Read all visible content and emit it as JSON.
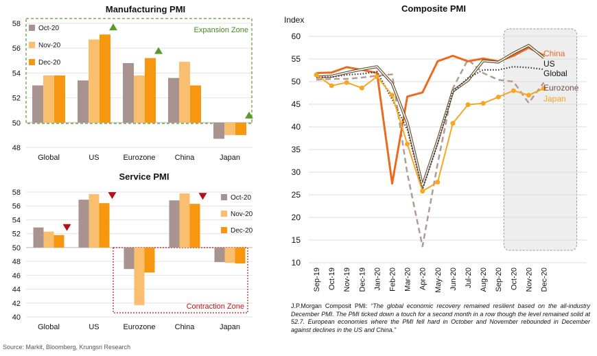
{
  "source": "Source: Markit, Bloomberg, Krungsri Research",
  "note": {
    "lead": "J.P.Morgan Composit PMI: ",
    "quote": "“The global economic recovery remained resilient based on the all-industry December PMI. The PMI ticked down a touch for a second month in a row though the level remained solid at 52.7. European economies where the PMI fell hard in October and November rebounded in December against declines in the US and China.”"
  },
  "colors": {
    "oct": "#a89390",
    "nov": "#f9bf6f",
    "dec": "#f7960f",
    "up_arrow": "#5a9a2a",
    "down_arrow": "#b01218",
    "exp_zone": "#5a9a2a",
    "con_zone": "#c0141b",
    "china": "#ec6a1e",
    "us": "#6b5030",
    "global": "#333333",
    "eurozone": "#b09a96",
    "japan": "#f5a623"
  },
  "chart_data": [
    {
      "type": "bar",
      "title": "Manufacturing PMI",
      "categories": [
        "Global",
        "US",
        "Eurozone",
        "China",
        "Japan"
      ],
      "series": [
        {
          "name": "Oct-20",
          "values": [
            53.0,
            53.4,
            54.8,
            53.6,
            48.7
          ]
        },
        {
          "name": "Nov-20",
          "values": [
            53.8,
            56.7,
            53.8,
            54.9,
            49.0
          ]
        },
        {
          "name": "Dec-20",
          "values": [
            53.8,
            57.1,
            55.2,
            53.0,
            49.0
          ]
        }
      ],
      "direction_markers": [
        "",
        "up",
        "up",
        "",
        "up"
      ],
      "zone_label": "Expansion Zone",
      "baseline": 50,
      "ylim": [
        48,
        58
      ],
      "yticks": [
        "48",
        "50",
        "52",
        "54",
        "56",
        "58"
      ],
      "grid": true,
      "legend_position": "top-left"
    },
    {
      "type": "bar",
      "title": "Service PMI",
      "categories": [
        "Global",
        "US",
        "Eurozone",
        "China",
        "Japan"
      ],
      "series": [
        {
          "name": "Oct-20",
          "values": [
            52.9,
            56.9,
            46.9,
            56.8,
            47.9
          ]
        },
        {
          "name": "Nov-20",
          "values": [
            52.3,
            57.7,
            41.7,
            57.8,
            47.8
          ]
        },
        {
          "name": "Dec-20",
          "values": [
            51.8,
            56.4,
            46.4,
            56.3,
            47.7
          ]
        }
      ],
      "direction_markers": [
        "down",
        "down",
        "",
        "down",
        ""
      ],
      "zone_label": "Contraction Zone",
      "baseline": 50,
      "ylim": [
        40,
        58
      ],
      "yticks": [
        "40",
        "42",
        "44",
        "46",
        "48",
        "50",
        "52",
        "54",
        "56",
        "58"
      ],
      "grid": true,
      "legend_position": "top-right"
    },
    {
      "type": "line",
      "title": "Composite PMI",
      "ylabel": "Index",
      "x": [
        "Sep-19",
        "Oct-19",
        "Nov-19",
        "Dec-19",
        "Jan-20",
        "Feb-20",
        "Mar-20",
        "Apr-20",
        "May-20",
        "Jun-20",
        "Jul-20",
        "Aug-20",
        "Sep-20",
        "Oct-20",
        "Nov-20",
        "Dec-20"
      ],
      "series": [
        {
          "name": "China",
          "values": [
            51.9,
            52.0,
            53.2,
            52.6,
            51.9,
            27.5,
            46.7,
            47.6,
            54.5,
            55.7,
            54.5,
            55.1,
            54.5,
            55.7,
            57.5,
            55.8
          ]
        },
        {
          "name": "US",
          "values": [
            51.0,
            51.2,
            52.0,
            52.7,
            53.3,
            49.6,
            40.9,
            27.0,
            37.0,
            47.9,
            50.3,
            54.6,
            54.3,
            56.3,
            58.0,
            55.3
          ]
        },
        {
          "name": "Global",
          "values": [
            51.0,
            51.0,
            51.5,
            51.7,
            52.2,
            46.1,
            39.4,
            26.2,
            36.3,
            47.7,
            50.8,
            52.6,
            52.6,
            53.3,
            53.1,
            52.7
          ]
        },
        {
          "name": "Eurozone",
          "values": [
            50.4,
            50.6,
            50.6,
            50.9,
            51.3,
            51.6,
            29.7,
            13.6,
            31.9,
            48.5,
            54.9,
            51.9,
            50.4,
            50.0,
            45.3,
            49.8
          ]
        },
        {
          "name": "Japan",
          "values": [
            51.5,
            49.1,
            49.8,
            48.6,
            51.1,
            47.0,
            36.2,
            25.8,
            27.8,
            40.8,
            44.9,
            45.2,
            46.6,
            48.0,
            47.0,
            48.5
          ]
        }
      ],
      "line_styles": [
        "solid-thick",
        "double",
        "dotted",
        "dashed",
        "solid-markers"
      ],
      "highlight_range": [
        "Oct-20",
        "Dec-20"
      ],
      "ylim": [
        10,
        60
      ],
      "yticks": [
        "10",
        "15",
        "20",
        "25",
        "30",
        "35",
        "40",
        "45",
        "50",
        "55",
        "60"
      ],
      "grid": true,
      "legend": "direct labels at right end of lines"
    }
  ]
}
